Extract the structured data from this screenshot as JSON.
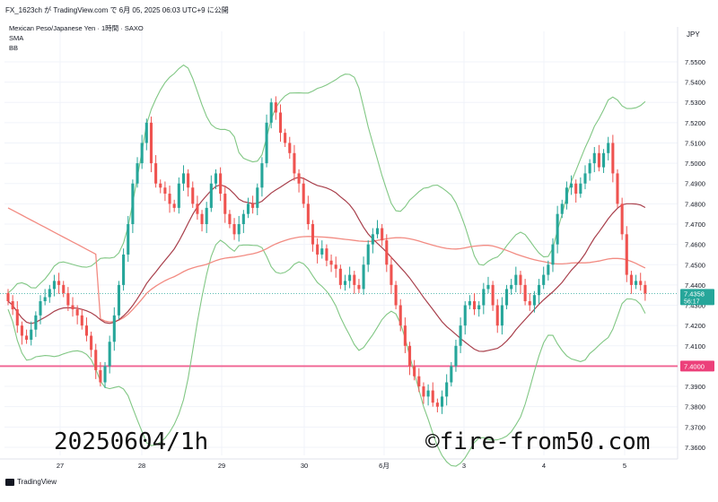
{
  "header": {
    "publish_line": "FX_1623ch が TradingView.com で 6月 05, 2025 06:03 UTC+9 に公開"
  },
  "legend": {
    "symbol_line": "Mexican Peso/Japanese Yen · 1時間 · SAXO",
    "indicator1": "SMA",
    "indicator2": "BB"
  },
  "axis": {
    "currency": "JPY",
    "y_ticks": [
      "7.5500",
      "7.5400",
      "7.5300",
      "7.5200",
      "7.5100",
      "7.5000",
      "7.4900",
      "7.4800",
      "7.4700",
      "7.4600",
      "7.4500",
      "7.4400",
      "7.4300",
      "7.4200",
      "7.4100",
      "7.4000",
      "7.3900",
      "7.3800",
      "7.3700",
      "7.3600"
    ],
    "x_ticks": [
      "27",
      "28",
      "29",
      "30",
      "6月",
      "3",
      "4",
      "5"
    ]
  },
  "price_tag": {
    "price": "7.4358",
    "countdown": "56:17"
  },
  "level_tag": {
    "price": "7.4000"
  },
  "footer": {
    "logo_text": "TradingView"
  },
  "overlay": {
    "date_text": "20250604/1h",
    "watermark": "©fire-from50.com"
  },
  "colors": {
    "up": "#26a69a",
    "down": "#ef5350",
    "bb": "#81c784",
    "sma_fast": "#a83f4b",
    "sma_slow": "#f28b82",
    "level": "#f06292",
    "price_tag_bg": "#26a69a",
    "level_tag_bg": "#ec407a"
  },
  "chart_data": {
    "type": "candlestick",
    "ylim": [
      7.356,
      7.565
    ],
    "x_tick_positions": [
      10,
      33,
      56,
      79,
      102,
      125,
      148,
      171
    ],
    "horizontal_level": 7.4,
    "current_price": 7.4358,
    "candles_close": [
      7.432,
      7.428,
      7.42,
      7.415,
      7.413,
      7.418,
      7.425,
      7.432,
      7.434,
      7.438,
      7.442,
      7.44,
      7.436,
      7.43,
      7.428,
      7.425,
      7.42,
      7.415,
      7.408,
      7.398,
      7.392,
      7.4,
      7.412,
      7.425,
      7.44,
      7.455,
      7.47,
      7.49,
      7.5,
      7.51,
      7.52,
      7.5,
      7.49,
      7.488,
      7.485,
      7.48,
      7.478,
      7.49,
      7.495,
      7.488,
      7.48,
      7.475,
      7.47,
      7.478,
      7.49,
      7.495,
      7.485,
      7.475,
      7.47,
      7.465,
      7.47,
      7.475,
      7.48,
      7.478,
      7.488,
      7.5,
      7.52,
      7.53,
      7.525,
      7.515,
      7.51,
      7.505,
      7.495,
      7.49,
      7.48,
      7.47,
      7.46,
      7.455,
      7.458,
      7.452,
      7.45,
      7.448,
      7.44,
      7.442,
      7.445,
      7.44,
      7.438,
      7.45,
      7.46,
      7.465,
      7.468,
      7.462,
      7.45,
      7.44,
      7.43,
      7.42,
      7.41,
      7.4,
      7.395,
      7.39,
      7.385,
      7.388,
      7.382,
      7.38,
      7.385,
      7.392,
      7.4,
      7.41,
      7.42,
      7.43,
      7.432,
      7.428,
      7.43,
      7.438,
      7.44,
      7.43,
      7.42,
      7.43,
      7.438,
      7.44,
      7.445,
      7.44,
      7.432,
      7.43,
      7.435,
      7.44,
      7.445,
      7.45,
      7.46,
      7.475,
      7.48,
      7.488,
      7.49,
      7.485,
      7.49,
      7.495,
      7.5,
      7.505,
      7.498,
      7.505,
      7.51,
      7.495,
      7.48,
      7.465,
      7.445,
      7.44,
      7.442,
      7.44,
      7.4358
    ],
    "candles_open": [
      7.436,
      7.432,
      7.428,
      7.42,
      7.415,
      7.413,
      7.418,
      7.425,
      7.432,
      7.434,
      7.438,
      7.442,
      7.44,
      7.436,
      7.43,
      7.428,
      7.425,
      7.42,
      7.415,
      7.408,
      7.398,
      7.392,
      7.4,
      7.412,
      7.425,
      7.44,
      7.455,
      7.47,
      7.49,
      7.5,
      7.51,
      7.52,
      7.5,
      7.49,
      7.488,
      7.485,
      7.48,
      7.478,
      7.49,
      7.495,
      7.488,
      7.48,
      7.475,
      7.47,
      7.478,
      7.49,
      7.495,
      7.485,
      7.475,
      7.47,
      7.465,
      7.47,
      7.475,
      7.48,
      7.478,
      7.488,
      7.5,
      7.52,
      7.53,
      7.525,
      7.515,
      7.51,
      7.505,
      7.495,
      7.49,
      7.48,
      7.47,
      7.46,
      7.455,
      7.458,
      7.452,
      7.45,
      7.448,
      7.44,
      7.442,
      7.445,
      7.44,
      7.438,
      7.45,
      7.46,
      7.465,
      7.468,
      7.462,
      7.45,
      7.44,
      7.43,
      7.42,
      7.41,
      7.4,
      7.395,
      7.39,
      7.385,
      7.388,
      7.382,
      7.38,
      7.385,
      7.392,
      7.4,
      7.41,
      7.42,
      7.43,
      7.432,
      7.428,
      7.43,
      7.438,
      7.44,
      7.43,
      7.42,
      7.43,
      7.438,
      7.44,
      7.445,
      7.44,
      7.432,
      7.43,
      7.435,
      7.44,
      7.445,
      7.45,
      7.46,
      7.475,
      7.48,
      7.488,
      7.49,
      7.485,
      7.49,
      7.495,
      7.5,
      7.505,
      7.498,
      7.505,
      7.51,
      7.495,
      7.48,
      7.465,
      7.445,
      7.44,
      7.442,
      7.44
    ]
  }
}
